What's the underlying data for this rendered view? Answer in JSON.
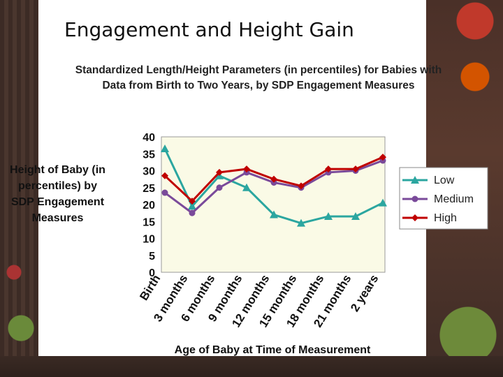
{
  "page_title": "Engagement and Height Gain",
  "chart_data": {
    "type": "line",
    "title": "Standardized Length/Height Parameters (in percentiles) for Babies with Data from Birth to Two Years, by SDP Engagement Measures",
    "xlabel": "Age of Baby at Time of Measurement",
    "ylabel": "Height of Baby (in percentiles) by SDP Engagement Measures",
    "ylim": [
      0,
      40
    ],
    "yticks": [
      0,
      5,
      10,
      15,
      20,
      25,
      30,
      35,
      40
    ],
    "grid": false,
    "legend_position": "right",
    "categories": [
      "Birth",
      "3 months",
      "6 months",
      "9 months",
      "12 months",
      "15 months",
      "18 months",
      "21 months",
      "2 years"
    ],
    "series": [
      {
        "name": "Low",
        "color": "#2ba6a0",
        "marker": "triangle",
        "values": [
          36.5,
          19.5,
          28.5,
          25,
          17,
          14.5,
          16.5,
          16.5,
          20.5
        ]
      },
      {
        "name": "Medium",
        "color": "#7a4a9a",
        "marker": "circle",
        "values": [
          23.5,
          17.5,
          25,
          29.5,
          26.5,
          25,
          29.5,
          30,
          33
        ]
      },
      {
        "name": "High",
        "color": "#c00000",
        "marker": "diamond",
        "values": [
          28.5,
          21,
          29.5,
          30.5,
          27.5,
          25.5,
          30.5,
          30.5,
          34
        ]
      }
    ]
  }
}
